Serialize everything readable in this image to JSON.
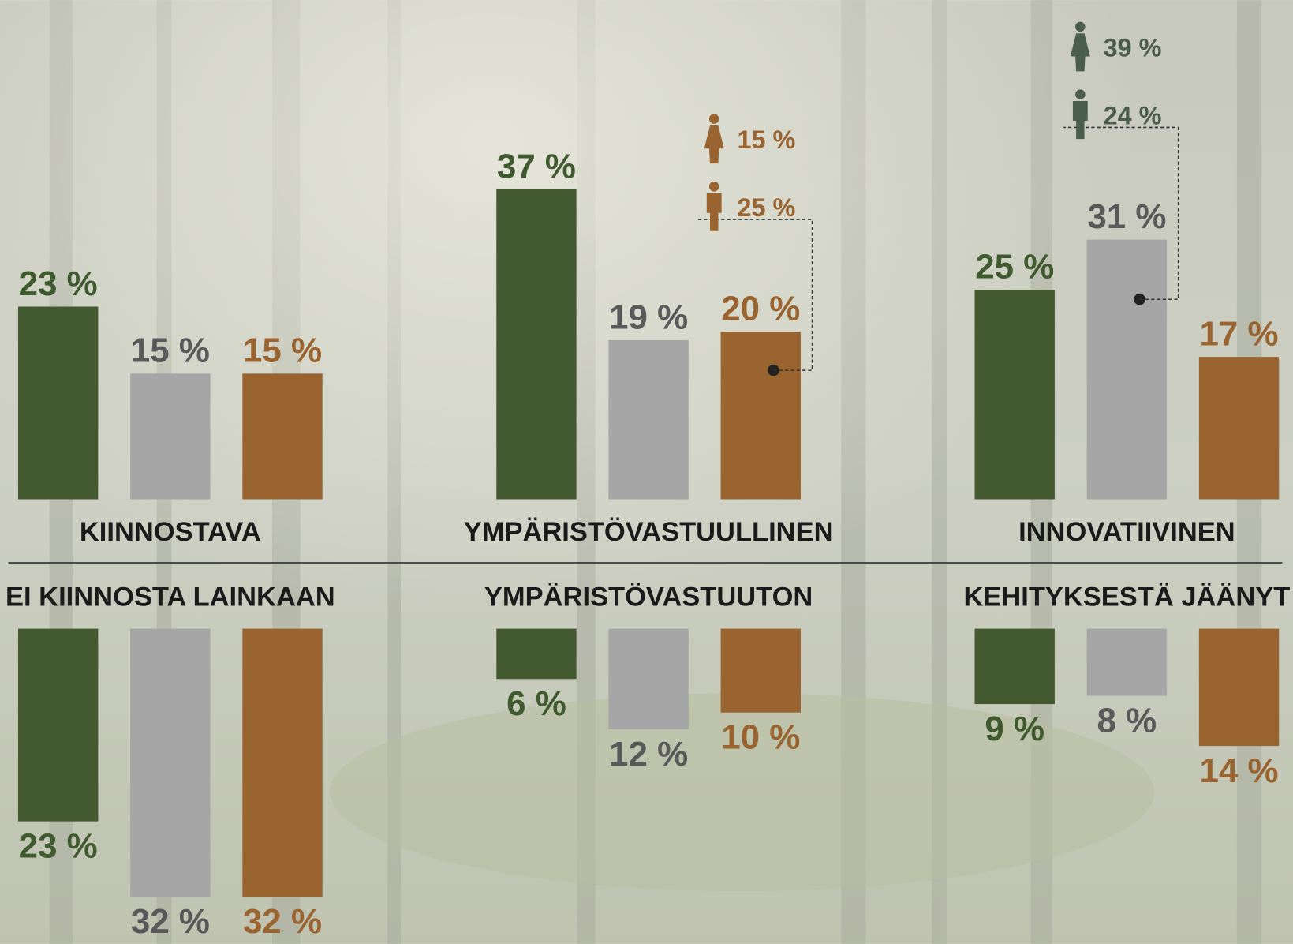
{
  "chart_data": [
    {
      "type": "bar",
      "title": "KIINNOSTAVA",
      "direction": "up",
      "categories": [
        null,
        null,
        null
      ],
      "values": [
        23,
        15,
        15
      ],
      "value_labels": [
        "23 %",
        "15 %",
        "15 %"
      ],
      "colors": [
        "#435a31",
        "#a6a6a6",
        "#9a6431"
      ],
      "label_colors": [
        "#3f5a2e",
        "#595959",
        "#9a6431"
      ],
      "breakdowns": [
        null,
        null,
        null
      ]
    },
    {
      "type": "bar",
      "title": "YMPÄRISTÖVASTUULLINEN",
      "direction": "up",
      "categories": [
        null,
        null,
        null
      ],
      "values": [
        37,
        19,
        20
      ],
      "value_labels": [
        "37 %",
        "19 %",
        "20 %"
      ],
      "colors": [
        "#435a31",
        "#a6a6a6",
        "#9a6431"
      ],
      "label_colors": [
        "#3f5a2e",
        "#595959",
        "#9a6431"
      ],
      "breakdowns": [
        null,
        null,
        {
          "female": 15,
          "female_label": "15 %",
          "male": 25,
          "male_label": "25 %",
          "color": "#9a6431"
        }
      ]
    },
    {
      "type": "bar",
      "title": "INNOVATIIVINEN",
      "direction": "up",
      "categories": [
        null,
        null,
        null
      ],
      "values": [
        25,
        31,
        17
      ],
      "value_labels": [
        "25 %",
        "31 %",
        "17 %"
      ],
      "colors": [
        "#435a31",
        "#a6a6a6",
        "#9a6431"
      ],
      "label_colors": [
        "#3f5a2e",
        "#595959",
        "#9a6431"
      ],
      "breakdowns": [
        null,
        {
          "female": 39,
          "female_label": "39 %",
          "male": 24,
          "male_label": "24 %",
          "color": "#4b5e4b"
        },
        null
      ]
    },
    {
      "type": "bar",
      "title": "EI KIINNOSTA LAINKAAN",
      "direction": "down",
      "categories": [
        null,
        null,
        null
      ],
      "values": [
        23,
        32,
        32
      ],
      "value_labels": [
        "23 %",
        "32 %",
        "32 %"
      ],
      "colors": [
        "#435a31",
        "#a6a6a6",
        "#9a6431"
      ],
      "label_colors": [
        "#3f5a2e",
        "#595959",
        "#9a6431"
      ],
      "breakdowns": [
        null,
        null,
        null
      ]
    },
    {
      "type": "bar",
      "title": "YMPÄRISTÖVASTUUTON",
      "direction": "down",
      "categories": [
        null,
        null,
        null
      ],
      "values": [
        6,
        12,
        10
      ],
      "value_labels": [
        "6 %",
        "12 %",
        "10 %"
      ],
      "colors": [
        "#435a31",
        "#a6a6a6",
        "#9a6431"
      ],
      "label_colors": [
        "#3f5a2e",
        "#595959",
        "#9a6431"
      ],
      "breakdowns": [
        null,
        null,
        null
      ]
    },
    {
      "type": "bar",
      "title": "KEHITYKSESTÄ JÄÄNYT",
      "direction": "down",
      "categories": [
        null,
        null,
        null
      ],
      "values": [
        9,
        8,
        14
      ],
      "value_labels": [
        "9 %",
        "8 %",
        "14 %"
      ],
      "colors": [
        "#435a31",
        "#a6a6a6",
        "#9a6431"
      ],
      "label_colors": [
        "#3f5a2e",
        "#595959",
        "#9a6431"
      ],
      "breakdowns": [
        null,
        null,
        null
      ]
    }
  ]
}
